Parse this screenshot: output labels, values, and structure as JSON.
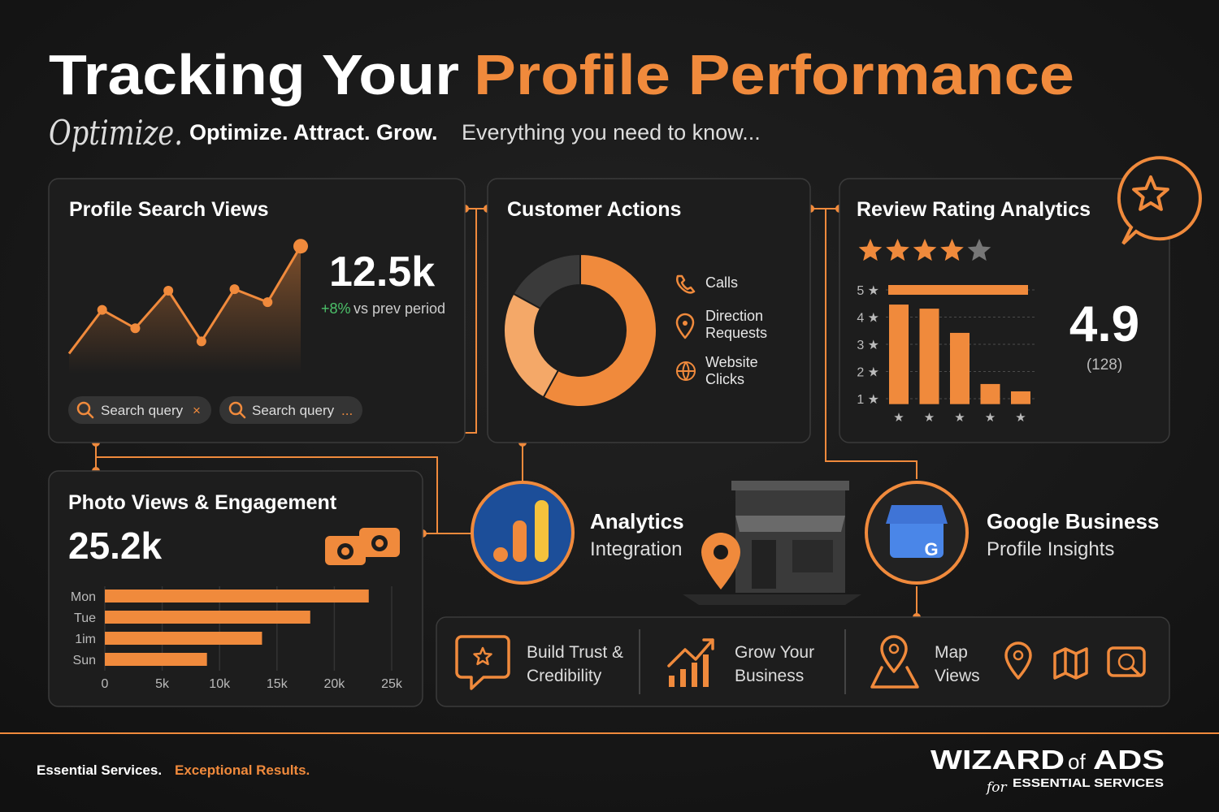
{
  "header": {
    "title_white": "Tracking Your",
    "title_orange": "Profile Performance",
    "script_word": "Optimize.",
    "tagline_bold": "Optimize. Attract. Grow.",
    "tagline": "Everything you need to know..."
  },
  "chart_data": [
    {
      "type": "line",
      "title": "Profile Search Views",
      "headline": "12.5k",
      "change": "+8%",
      "change_note": "vs prev period",
      "values": [
        2.6,
        8.3,
        5.9,
        10.8,
        4.2,
        11.0,
        9.3,
        16.6
      ],
      "ylim": [
        0,
        18
      ],
      "color": "#f08a3c",
      "chips": [
        {
          "label": "Search query",
          "action": "×"
        },
        {
          "label": "Search query",
          "action": "..."
        }
      ]
    },
    {
      "type": "donut",
      "title": "Customer Actions",
      "categories": [
        "Calls",
        "Direction Requests",
        "Website Clicks"
      ],
      "values": [
        17,
        25,
        58
      ],
      "colors": [
        "#3a3a3a",
        "#f4a868",
        "#f08a3c"
      ]
    },
    {
      "type": "bar",
      "title": "Review Rating Analytics",
      "categories": [
        "★",
        "★",
        "★",
        "★",
        "★"
      ],
      "values": [
        4.46,
        4.31,
        3.42,
        1.54,
        1.27
      ],
      "ylim": [
        0.8,
        5.2
      ],
      "yticks": [
        {
          "value": 1,
          "label": "1 ★"
        },
        {
          "value": 2,
          "label": "2 ★"
        },
        {
          "value": 3,
          "label": "3 ★"
        },
        {
          "value": 4,
          "label": "4 ★"
        },
        {
          "value": 5,
          "label": "5 ★"
        }
      ],
      "grid": true,
      "color": "#f08a3c",
      "average": 4.9,
      "count_label": "(128)"
    },
    {
      "type": "bar",
      "orientation": "horizontal",
      "title": "Photo Views & Engagement",
      "headline": "25.2k",
      "categories": [
        "Mon",
        "Tue",
        "1im",
        "Sun"
      ],
      "values": [
        23000,
        17900,
        13700,
        8900
      ],
      "xlim": [
        0,
        25000
      ],
      "xticks": [
        0,
        {
          "value": 5000,
          "label": "5k"
        },
        {
          "value": 10000,
          "label": "10k"
        },
        {
          "value": 15000,
          "label": "15k"
        },
        {
          "value": 20000,
          "label": "20k"
        },
        {
          "value": 25000,
          "label": "25k"
        }
      ],
      "grid": true,
      "color": "#f08a3c"
    }
  ],
  "integrations": [
    {
      "title": "Analytics",
      "subtitle": "Integration",
      "icon_letter": null
    },
    {
      "title": "Google Business",
      "subtitle": "Profile Insights",
      "icon_letter": "G"
    }
  ],
  "benefits": [
    [
      "Build Trust &",
      "Credibility"
    ],
    [
      "Grow Your",
      "Business"
    ],
    [
      "Map",
      "Views"
    ]
  ],
  "footer": {
    "tagline_white": "Essential Services.",
    "tagline_orange": "Exceptional Results.",
    "brand_main": "WIZARD",
    "brand_of": "of",
    "brand_ads": "ADS",
    "brand_for": "for",
    "brand_sub": "ESSENTIAL SERVICES"
  }
}
